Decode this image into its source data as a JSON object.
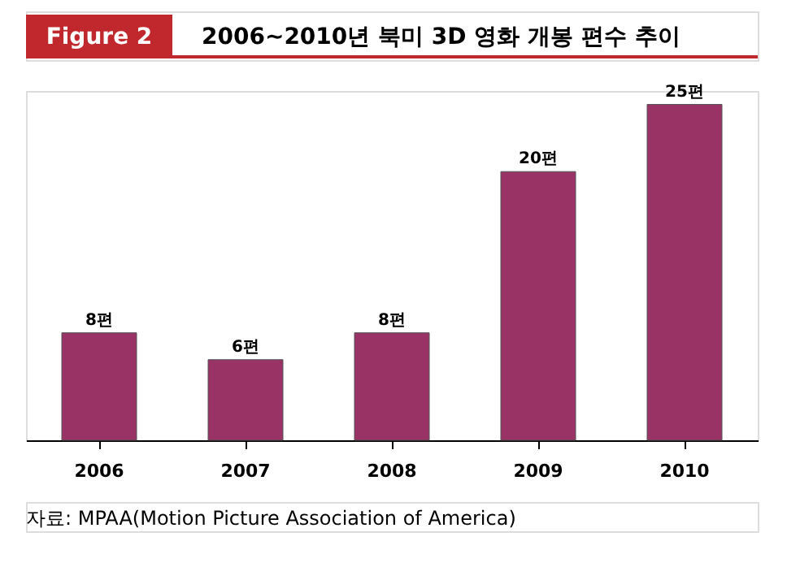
{
  "chart_data": {
    "type": "bar",
    "title": "2006~2010년 북미 3D 영화 개봉 편수 추이",
    "categories": [
      "2006",
      "2007",
      "2008",
      "2009",
      "2010"
    ],
    "series": [
      {
        "color": "#993366",
        "values": [
          8,
          6,
          8,
          20,
          25
        ],
        "value_labels": [
          "8편",
          "6편",
          "8편",
          "20편",
          "25편"
        ]
      }
    ],
    "annotations": [
      "Figure 2",
      "자료: MPAA(Motion Picture Association of America)"
    ],
    "grid": false
  }
}
